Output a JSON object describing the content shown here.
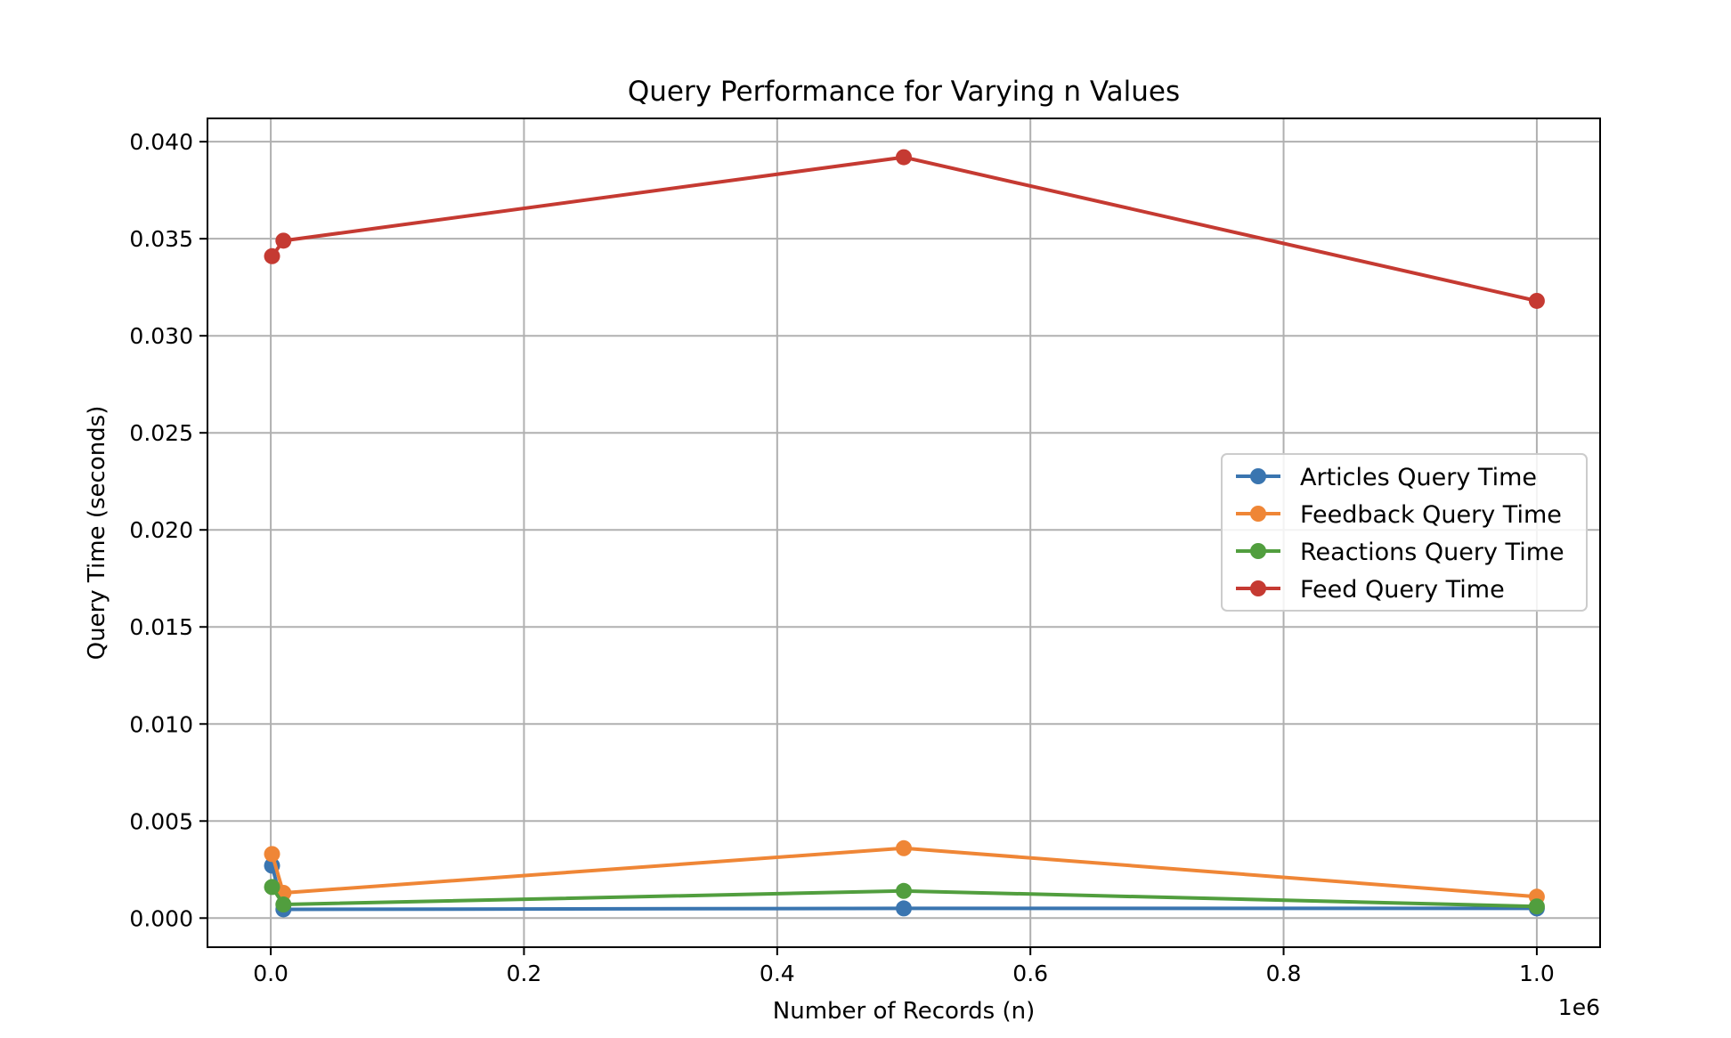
{
  "chart_data": {
    "type": "line",
    "title": "Query Performance for Varying n Values",
    "xlabel": "Number of Records (n)",
    "ylabel": "Query Time (seconds)",
    "x_offset_label": "1e6",
    "xlim": [
      -0.05,
      1.05
    ],
    "ylim": [
      -0.0015,
      0.0412
    ],
    "x_ticks": [
      0.0,
      0.2,
      0.4,
      0.6,
      0.8,
      1.0
    ],
    "x_tick_labels": [
      "0.0",
      "0.2",
      "0.4",
      "0.6",
      "0.8",
      "1.0"
    ],
    "y_ticks": [
      0.0,
      0.005,
      0.01,
      0.015,
      0.02,
      0.025,
      0.03,
      0.035,
      0.04
    ],
    "y_tick_labels": [
      "0.000",
      "0.005",
      "0.010",
      "0.015",
      "0.020",
      "0.025",
      "0.030",
      "0.035",
      "0.040"
    ],
    "grid": true,
    "legend_position": "center-right",
    "x": [
      0.001,
      0.01,
      0.5,
      1.0
    ],
    "series": [
      {
        "name": "Articles Query Time",
        "color": "#3a75b0",
        "values": [
          0.0027,
          0.00045,
          0.0005,
          0.0005
        ]
      },
      {
        "name": "Feedback Query Time",
        "color": "#ef8636",
        "values": [
          0.0033,
          0.0013,
          0.0036,
          0.0011
        ]
      },
      {
        "name": "Reactions Query Time",
        "color": "#519e3e",
        "values": [
          0.0016,
          0.0007,
          0.0014,
          0.0006
        ]
      },
      {
        "name": "Feed Query Time",
        "color": "#c53a32",
        "values": [
          0.0341,
          0.0349,
          0.0392,
          0.0318
        ]
      }
    ]
  }
}
